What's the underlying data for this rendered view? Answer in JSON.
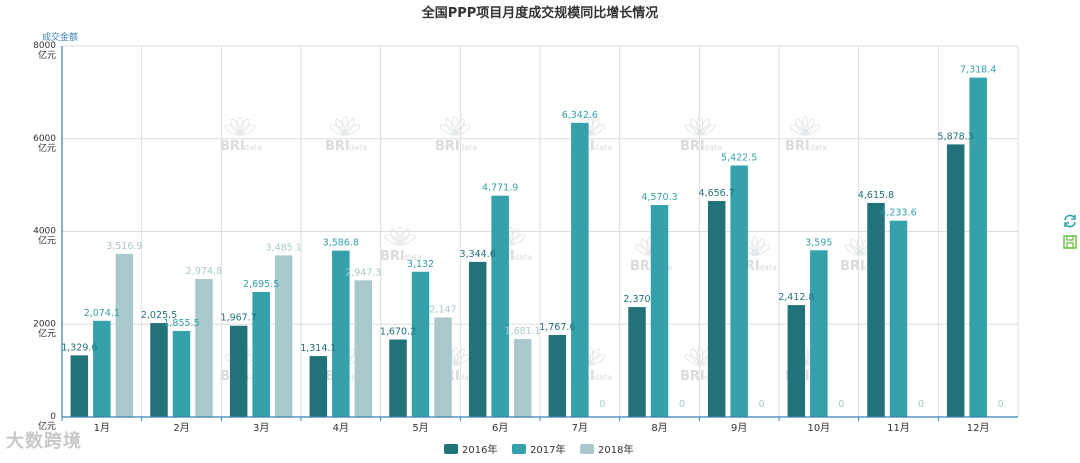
{
  "chart_data": {
    "type": "bar",
    "title": "全国PPP项目月度成交规模同比增长情况",
    "ylabel": "成交金额",
    "ytick_suffix": "亿元",
    "ylim": [
      0,
      8000
    ],
    "yticks": [
      0,
      2000,
      4000,
      6000,
      8000
    ],
    "categories": [
      "1月",
      "2月",
      "3月",
      "4月",
      "5月",
      "6月",
      "7月",
      "8月",
      "9月",
      "10月",
      "11月",
      "12月"
    ],
    "series": [
      {
        "name": "2016年",
        "color": "#22727a",
        "values": [
          1329.6,
          2025.5,
          1967.7,
          1314.1,
          1670.2,
          3344.6,
          1767.6,
          2370,
          4656.7,
          2412.8,
          4615.8,
          5878.3
        ],
        "labels": [
          "1,329.6",
          "2,025.5",
          "1,967.7",
          "1,314.1",
          "1,670.2",
          "3,344.6",
          "1,767.6",
          "2,370",
          "4,656.7",
          "2,412.8",
          "4,615.8",
          "5,878.3"
        ]
      },
      {
        "name": "2017年",
        "color": "#34a1ab",
        "values": [
          2074.1,
          1855.5,
          2695.5,
          3586.8,
          3132,
          4771.9,
          6342.6,
          4570.3,
          5422.5,
          3595,
          4233.6,
          7318.4
        ],
        "labels": [
          "2,074.1",
          "1,855.5",
          "2,695.5",
          "3,586.8",
          "3,132",
          "4,771.9",
          "6,342.6",
          "4,570.3",
          "5,422.5",
          "3,595",
          "4,233.6",
          "7,318.4"
        ]
      },
      {
        "name": "2018年",
        "color": "#a9c8cc",
        "values": [
          3516.9,
          2974.8,
          3485.1,
          2947.3,
          2147,
          1681.1,
          0,
          0,
          0,
          0,
          0,
          0
        ],
        "labels": [
          "3,516.9",
          "2,974.8",
          "3,485.1",
          "2,947.3",
          "2,147",
          "1,681.1",
          "0",
          "0",
          "0",
          "0",
          "0",
          "0"
        ]
      }
    ],
    "legend_position": "bottom-center",
    "grid": true
  },
  "watermark": {
    "text": "BRI",
    "sub_text": "data"
  },
  "brand": {
    "text": "大数跨境"
  },
  "toolbox": {
    "refresh_icon": "refresh-icon",
    "save_icon": "save-icon"
  }
}
